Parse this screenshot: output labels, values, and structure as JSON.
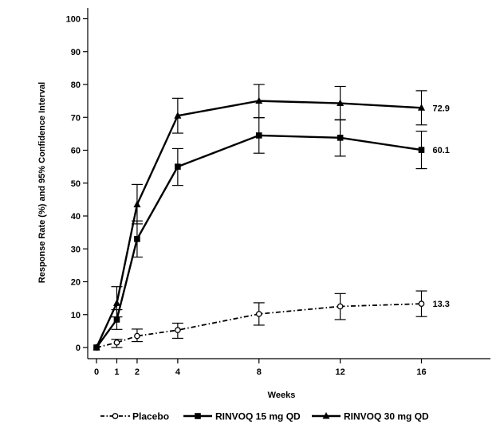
{
  "chart_data": {
    "type": "line",
    "title": "",
    "xlabel": "Weeks",
    "ylabel": "Response Rate (%) and 95% Confidence Interval",
    "x": [
      0,
      1,
      2,
      4,
      8,
      12,
      16
    ],
    "x_ticks": [
      "0",
      "1",
      "2",
      "4",
      "8",
      "12",
      "16"
    ],
    "y_ticks": [
      "0",
      "10",
      "20",
      "30",
      "40",
      "50",
      "60",
      "70",
      "80",
      "90",
      "100"
    ],
    "xlim": [
      0,
      18
    ],
    "ylim": [
      0,
      100
    ],
    "grid": false,
    "legend_position": "bottom",
    "series": [
      {
        "name": "Placebo",
        "style": "dash-dot",
        "marker": "open-circle",
        "color": "#000000",
        "values": [
          0,
          1.5,
          3.5,
          5.3,
          10.2,
          12.5,
          13.3
        ],
        "ci_low": [
          0,
          0,
          1.8,
          2.8,
          6.8,
          8.5,
          9.4
        ],
        "ci_high": [
          0,
          2.5,
          5.6,
          7.4,
          13.6,
          16.4,
          17.2
        ],
        "end_label": "13.3"
      },
      {
        "name": "RINVOQ 15 mg QD",
        "style": "solid",
        "marker": "filled-square",
        "color": "#000000",
        "values": [
          0,
          8.5,
          33,
          55,
          64.5,
          63.8,
          60.1
        ],
        "ci_low": [
          0,
          5.5,
          27.5,
          49.3,
          59.1,
          58.2,
          54.4
        ],
        "ci_high": [
          0,
          11.5,
          38.5,
          60.5,
          69.9,
          69.3,
          65.8
        ],
        "end_label": "60.1"
      },
      {
        "name": "RINVOQ 30 mg QD",
        "style": "solid",
        "marker": "filled-triangle",
        "color": "#000000",
        "values": [
          0,
          13.5,
          43.5,
          70.5,
          75,
          74.3,
          72.9
        ],
        "ci_low": [
          0,
          9.3,
          37.6,
          65.2,
          69.9,
          69.2,
          67.7
        ],
        "ci_high": [
          0,
          18.5,
          49.6,
          75.8,
          80,
          79.4,
          78.1
        ],
        "end_label": "72.9"
      }
    ]
  }
}
